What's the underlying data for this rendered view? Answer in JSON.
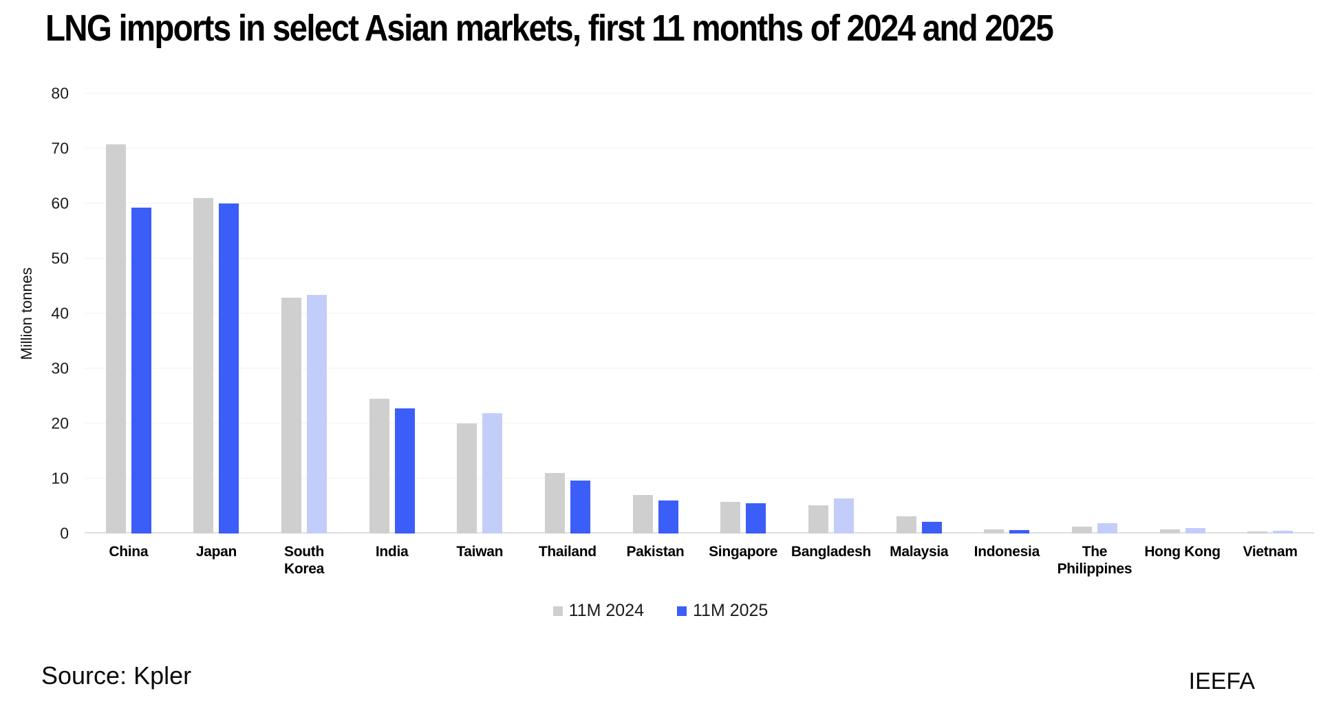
{
  "title": "LNG imports in select Asian markets, first 11 months of 2024 and 2025",
  "footer": {
    "source": "Source: Kpler",
    "brand": "IEEFA"
  },
  "legend": {
    "items": [
      {
        "label": "11M 2024",
        "color": "#cfcfcf"
      },
      {
        "label": "11M 2025",
        "color": "#3a5ef7"
      }
    ]
  },
  "chart_data": {
    "type": "bar",
    "title": "LNG imports in select Asian markets, first 11 months of 2024 and 2025",
    "xlabel": "",
    "ylabel": "Million tonnes",
    "ylim": [
      0,
      80
    ],
    "ytick_step": 10,
    "yticks": [
      0,
      10,
      20,
      30,
      40,
      50,
      60,
      70,
      80
    ],
    "grid": "horizontal-faint",
    "legend_position": "bottom-center",
    "categories": [
      "China",
      "Japan",
      "South Korea",
      "India",
      "Taiwan",
      "Thailand",
      "Pakistan",
      "Singapore",
      "Bangladesh",
      "Malaysia",
      "Indonesia",
      "The Philippines",
      "Hong Kong",
      "Vietnam"
    ],
    "series": [
      {
        "name": "11M 2024",
        "color": "#cfcfcf",
        "values": [
          70.8,
          61.0,
          42.9,
          24.5,
          20.0,
          11.0,
          7.0,
          5.8,
          5.1,
          3.1,
          0.8,
          1.3,
          0.8,
          0.4
        ]
      },
      {
        "name": "11M 2025",
        "color": "#3a5ef7",
        "color_light": "#c3cdf9",
        "values": [
          59.2,
          60.0,
          43.4,
          22.8,
          21.9,
          9.6,
          6.0,
          5.5,
          6.4,
          2.1,
          0.6,
          1.9,
          1.0,
          0.5
        ],
        "point_variant": [
          "dark",
          "dark",
          "light",
          "dark",
          "light",
          "dark",
          "dark",
          "dark",
          "light",
          "dark",
          "dark",
          "light",
          "light",
          "light"
        ]
      }
    ],
    "colors": {
      "bar_2024_gray": "#cfcfcf",
      "bar_2025_blue_dark": "#3a5ef7",
      "bar_2025_blue_light": "#c3cdf9",
      "gridline": "#f2f2f2",
      "baseline": "#dedede"
    }
  }
}
